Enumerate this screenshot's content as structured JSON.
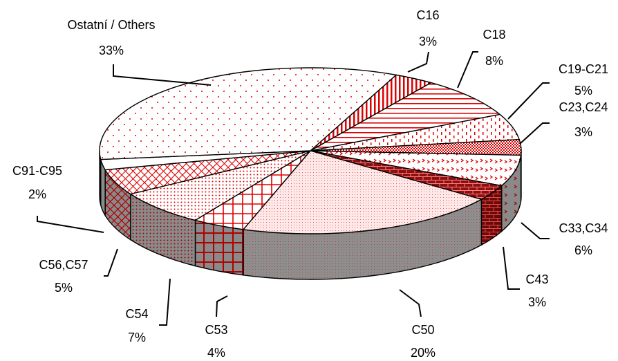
{
  "chart_data": {
    "type": "pie",
    "style": "3d-exploded-pie-with-hatch-patterns",
    "unit": "%",
    "slices": [
      {
        "label": "C16",
        "value": 3,
        "value_label": "3%",
        "pattern": "vertical-lines"
      },
      {
        "label": "C18",
        "value": 8,
        "value_label": "8%",
        "pattern": "horizontal-lines"
      },
      {
        "label": "C19-C21",
        "value": 5,
        "value_label": "5%",
        "pattern": "dashes"
      },
      {
        "label": "C23,C24",
        "value": 3,
        "value_label": "3%",
        "pattern": "checker"
      },
      {
        "label": "C33,C34",
        "value": 6,
        "value_label": "6%",
        "pattern": "chevrons"
      },
      {
        "label": "C43",
        "value": 3,
        "value_label": "3%",
        "pattern": "bricks"
      },
      {
        "label": "C50",
        "value": 20,
        "value_label": "20%",
        "pattern": "fine-dots"
      },
      {
        "label": "C53",
        "value": 4,
        "value_label": "4%",
        "pattern": "grid"
      },
      {
        "label": "C54",
        "value": 7,
        "value_label": "7%",
        "pattern": "dense-dots"
      },
      {
        "label": "C56,C57",
        "value": 5,
        "value_label": "5%",
        "pattern": "crosshatch"
      },
      {
        "label": "C91-C95",
        "value": 2,
        "value_label": "2%",
        "pattern": "solid-white"
      },
      {
        "label": "Ostatní / Others",
        "value": 33,
        "value_label": "33%",
        "pattern": "sparse-dots"
      }
    ],
    "colors": {
      "pattern": "#dd0000",
      "side_fill": "#8c8c8c",
      "outline": "#000000",
      "background": "#ffffff"
    }
  }
}
